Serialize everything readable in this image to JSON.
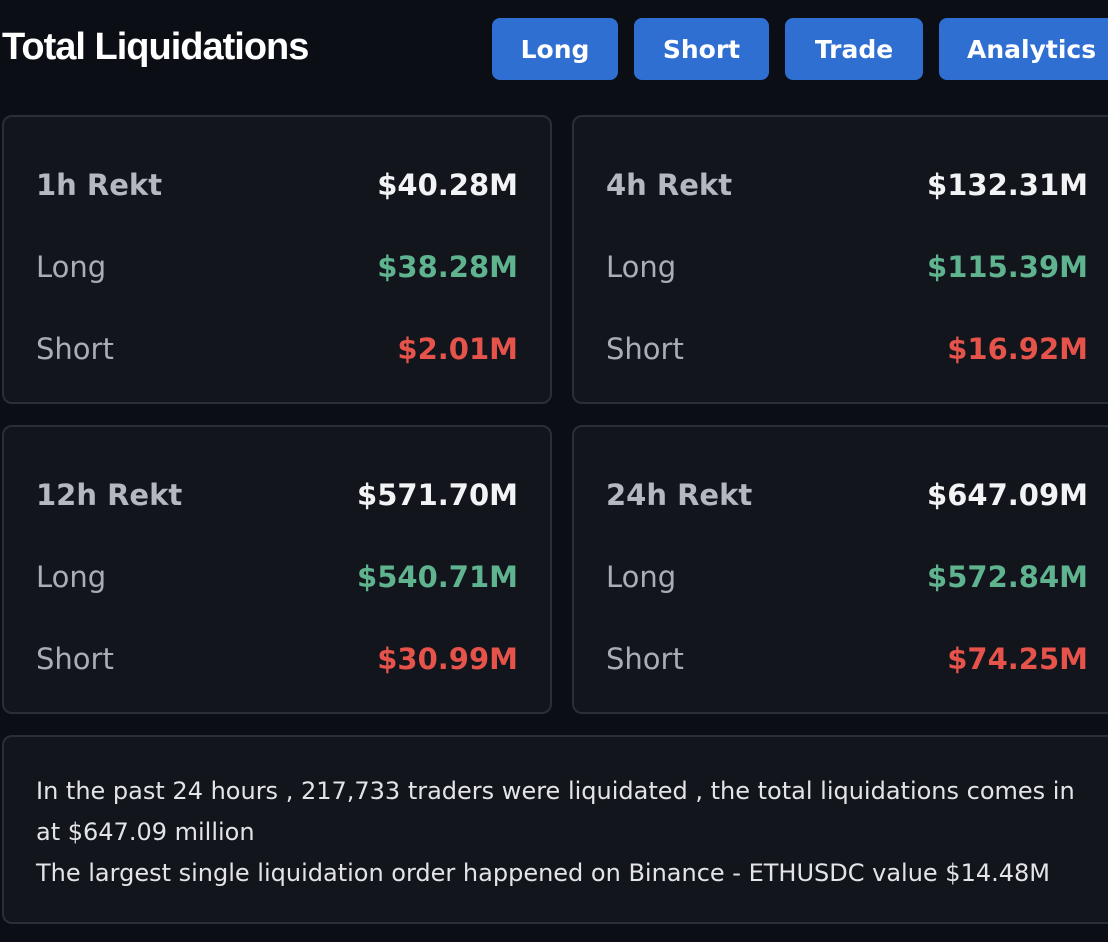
{
  "header": {
    "title": "Total Liquidations",
    "buttons": {
      "long": "Long",
      "short": "Short",
      "trade": "Trade",
      "analytics": "Analytics"
    }
  },
  "cards": [
    {
      "period": "1h Rekt",
      "total": "$40.28M",
      "long_label": "Long",
      "long": "$38.28M",
      "short_label": "Short",
      "short": "$2.01M"
    },
    {
      "period": "4h Rekt",
      "total": "$132.31M",
      "long_label": "Long",
      "long": "$115.39M",
      "short_label": "Short",
      "short": "$16.92M"
    },
    {
      "period": "12h Rekt",
      "total": "$571.70M",
      "long_label": "Long",
      "long": "$540.71M",
      "short_label": "Short",
      "short": "$30.99M"
    },
    {
      "period": "24h Rekt",
      "total": "$647.09M",
      "long_label": "Long",
      "long": "$572.84M",
      "short_label": "Short",
      "short": "$74.25M"
    }
  ],
  "summary": {
    "line1": "In the past 24 hours , 217,733 traders were liquidated , the total liquidations comes in at $647.09 million",
    "line2": "The largest single liquidation order happened on Binance - ETHUSDC value $14.48M"
  },
  "colors": {
    "accent": "#2f6fd1",
    "long": "#5fb38f",
    "short": "#e5534b"
  }
}
